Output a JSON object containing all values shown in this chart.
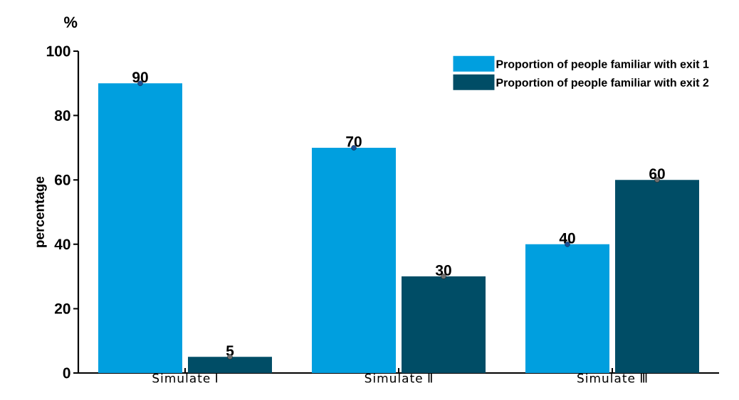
{
  "chart_data": {
    "type": "bar",
    "ylabel": "percentage",
    "annotations": [
      "%"
    ],
    "categories": [
      "Simulate Ⅰ",
      "Simulate Ⅱ",
      "Simulate Ⅲ"
    ],
    "series": [
      {
        "name": "Proportion of people familiar with exit 1",
        "color": "#009fdf",
        "values": [
          90,
          70,
          40
        ],
        "value_labels": [
          "90",
          "70",
          "40"
        ]
      },
      {
        "name": "Proportion of people familiar with exit 2",
        "color": "#004d66",
        "values": [
          5,
          30,
          60
        ],
        "value_labels": [
          "5",
          "30",
          "60"
        ]
      },
      {
        "type": "scatter",
        "color": "#1c4f96",
        "x": [
          "Simulate Ⅰ",
          "Simulate Ⅱ",
          "Simulate Ⅲ"
        ],
        "values": [
          90,
          70,
          40
        ]
      },
      {
        "type": "scatter",
        "color": "#707070",
        "x": [
          "Simulate Ⅰ",
          "Simulate Ⅱ",
          "Simulate Ⅲ"
        ],
        "values": [
          5,
          30,
          60
        ]
      }
    ],
    "ylim": [
      0,
      100
    ],
    "yticks": [
      0,
      20,
      40,
      60,
      80,
      100
    ],
    "marker": "circle",
    "legend": "top right",
    "grid": false
  }
}
